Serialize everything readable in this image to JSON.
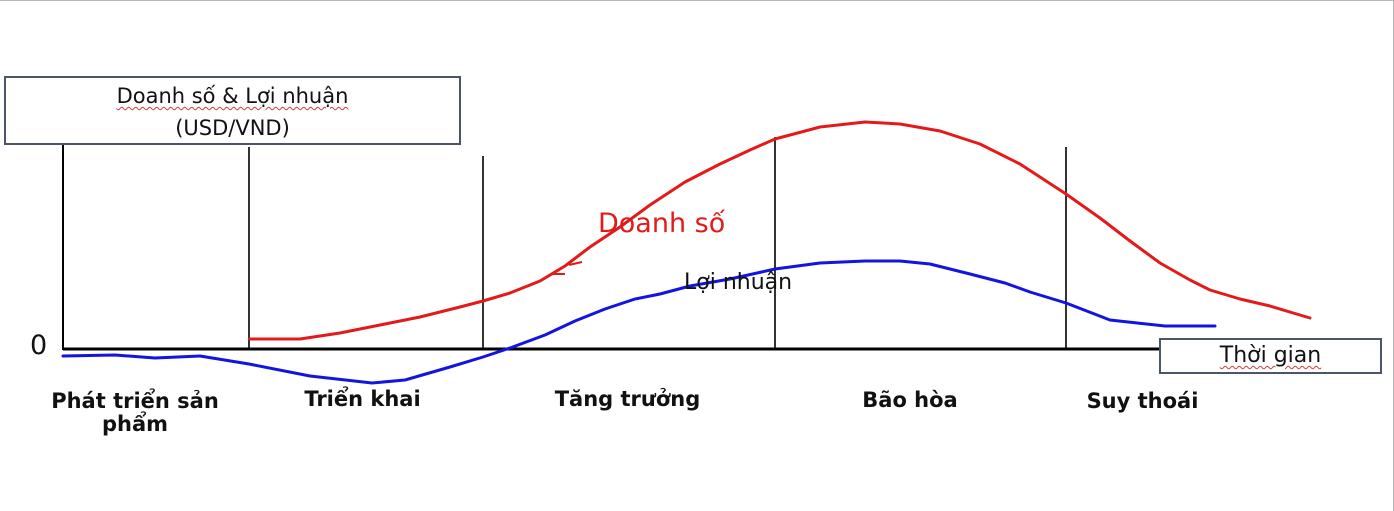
{
  "y_axis_label": {
    "line1": "Doanh số & Lợi nhuận",
    "line2": "(USD/VND)"
  },
  "x_axis_label": "Thời gian",
  "zero_label": "0",
  "series": {
    "sales": {
      "label": "Doanh số",
      "color": "#e41a1a"
    },
    "profit": {
      "label": "Lợi nhuận",
      "color": "#1414e0"
    }
  },
  "stages": [
    "Phát triển sản phẩm",
    "Triển khai",
    "Tăng trưởng",
    "Bão hòa",
    "Suy thoái"
  ],
  "colors": {
    "axis": "#000000",
    "box_border": "#4a5566",
    "spellcheck_underline": "#d23a3a"
  }
}
